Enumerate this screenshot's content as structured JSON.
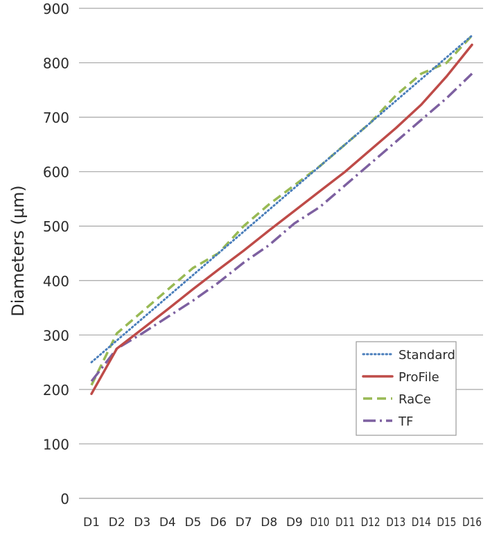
{
  "chart_data": {
    "type": "line",
    "title": "",
    "xlabel": "",
    "ylabel": "Diameters (µm)",
    "ylim": [
      0,
      900
    ],
    "yticks": [
      0,
      100,
      200,
      300,
      400,
      500,
      600,
      700,
      800,
      900
    ],
    "grid": "horizontal",
    "legend_position": "bottom-right",
    "categories": [
      "D1",
      "D2",
      "D3",
      "D4",
      "D5",
      "D6",
      "D7",
      "D8",
      "D9",
      "D10",
      "D11",
      "D12",
      "D13",
      "D14",
      "D15",
      "D16"
    ],
    "series": [
      {
        "name": "Standard",
        "color": "#4a7ebb",
        "style": "dotted",
        "values": [
          250,
          290,
          330,
          370,
          410,
          450,
          490,
          530,
          570,
          610,
          650,
          690,
          730,
          770,
          810,
          850
        ]
      },
      {
        "name": "ProFile",
        "color": "#be4b48",
        "style": "solid",
        "values": [
          192,
          275,
          311,
          347,
          384,
          420,
          455,
          492,
          528,
          564,
          600,
          640,
          680,
          723,
          775,
          833
        ]
      },
      {
        "name": "RaCe",
        "color": "#98b954",
        "style": "dashed",
        "values": [
          208,
          303,
          343,
          383,
          423,
          450,
          500,
          540,
          575,
          610,
          650,
          690,
          740,
          780,
          800,
          850
        ]
      },
      {
        "name": "TF",
        "color": "#7d60a0",
        "style": "dashdot",
        "values": [
          215,
          275,
          303,
          333,
          363,
          396,
          433,
          465,
          505,
          535,
          575,
          615,
          655,
          695,
          735,
          780
        ]
      }
    ]
  }
}
